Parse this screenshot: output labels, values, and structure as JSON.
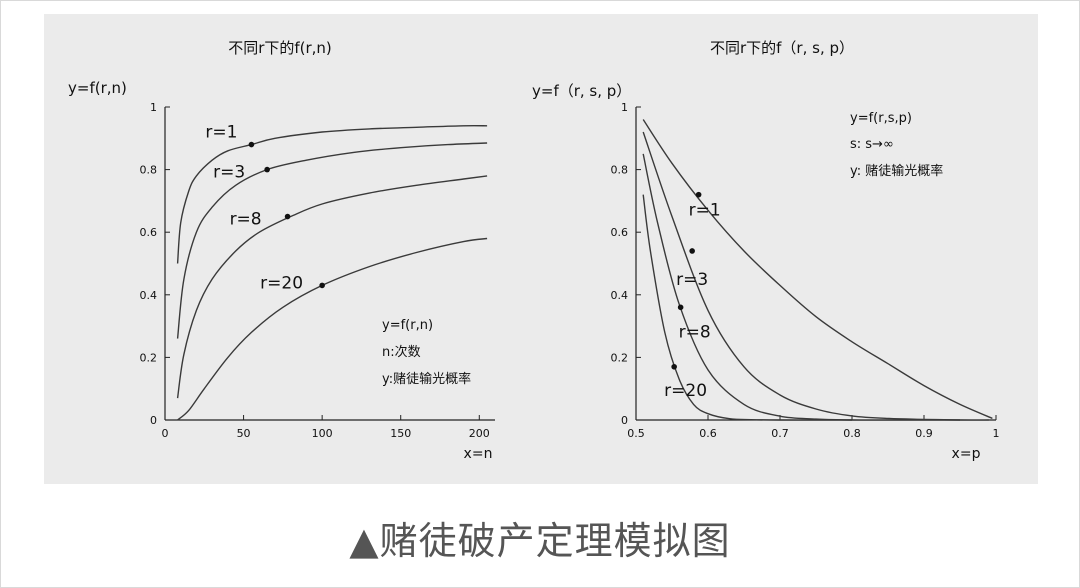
{
  "caption": "▲赌徒破产定理模拟图",
  "chart_data": [
    {
      "type": "line",
      "title": "不同r下的f(r,n)",
      "ylabel": "y=f(r,n)",
      "xlabel": "x=n",
      "xlim": [
        0,
        210
      ],
      "ylim": [
        0,
        1
      ],
      "x_ticks": [
        0,
        50,
        100,
        150,
        200
      ],
      "x_tick_labels": [
        "0",
        "50",
        "100",
        "150",
        "200"
      ],
      "y_ticks": [
        0,
        0.2,
        0.4,
        0.6,
        0.8,
        1
      ],
      "y_tick_labels": [
        "0",
        "0.2",
        "0.4",
        "0.6",
        "0.8",
        "1"
      ],
      "series": [
        {
          "name": "r=1",
          "x": [
            8,
            10,
            15,
            20,
            30,
            40,
            55,
            70,
            100,
            130,
            160,
            190,
            205
          ],
          "y": [
            0.5,
            0.63,
            0.73,
            0.78,
            0.83,
            0.86,
            0.88,
            0.9,
            0.92,
            0.93,
            0.935,
            0.94,
            0.94
          ],
          "marker": [
            55,
            0.88
          ]
        },
        {
          "name": "r=3",
          "x": [
            8,
            12,
            20,
            30,
            45,
            65,
            90,
            120,
            150,
            180,
            205
          ],
          "y": [
            0.26,
            0.45,
            0.6,
            0.68,
            0.75,
            0.8,
            0.83,
            0.855,
            0.87,
            0.88,
            0.885
          ],
          "marker": [
            65,
            0.8
          ]
        },
        {
          "name": "r=8",
          "x": [
            8,
            12,
            20,
            30,
            45,
            60,
            80,
            100,
            130,
            160,
            190,
            205
          ],
          "y": [
            0.07,
            0.21,
            0.35,
            0.45,
            0.54,
            0.6,
            0.65,
            0.69,
            0.725,
            0.75,
            0.77,
            0.78
          ],
          "marker": [
            78,
            0.65
          ]
        },
        {
          "name": "r=20",
          "x": [
            8,
            15,
            25,
            40,
            55,
            75,
            100,
            130,
            160,
            190,
            205
          ],
          "y": [
            0.0,
            0.03,
            0.1,
            0.2,
            0.28,
            0.36,
            0.43,
            0.49,
            0.535,
            0.57,
            0.58
          ],
          "marker": [
            100,
            0.43
          ]
        }
      ],
      "legend_box": [
        "y=f(r,n)",
        "n:次数",
        "y:赌徒输光概率"
      ]
    },
    {
      "type": "line",
      "title": "不同r下的f（r, s, p）",
      "ylabel": "y=f（r, s, p）",
      "xlabel": "x=p",
      "xlim": [
        0.5,
        1
      ],
      "ylim": [
        0,
        1
      ],
      "x_ticks": [
        0.5,
        0.6,
        0.7,
        0.8,
        0.9,
        1
      ],
      "x_tick_labels": [
        "0.5",
        "0.6",
        "0.7",
        "0.8",
        "0.9",
        "1"
      ],
      "y_ticks": [
        0,
        0.2,
        0.4,
        0.6,
        0.8,
        1
      ],
      "y_tick_labels": [
        "0",
        "0.2",
        "0.4",
        "0.6",
        "0.8",
        "1"
      ],
      "series": [
        {
          "name": "r=1",
          "x": [
            0.51,
            0.55,
            0.6,
            0.65,
            0.7,
            0.75,
            0.8,
            0.85,
            0.9,
            0.95,
            0.995
          ],
          "y": [
            0.96,
            0.82,
            0.67,
            0.54,
            0.43,
            0.33,
            0.25,
            0.18,
            0.11,
            0.05,
            0.005
          ],
          "marker": [
            0.587,
            0.72
          ]
        },
        {
          "name": "r=3",
          "x": [
            0.51,
            0.55,
            0.6,
            0.65,
            0.7,
            0.75,
            0.8,
            0.85,
            0.9,
            0.95,
            0.99
          ],
          "y": [
            0.92,
            0.65,
            0.35,
            0.17,
            0.08,
            0.035,
            0.013,
            0.005,
            0.002,
            0.0,
            0.0
          ],
          "marker": [
            0.578,
            0.54
          ]
        },
        {
          "name": "r=8",
          "x": [
            0.51,
            0.53,
            0.56,
            0.6,
            0.65,
            0.7,
            0.75,
            0.8,
            0.85,
            0.9,
            0.95
          ],
          "y": [
            0.85,
            0.63,
            0.37,
            0.16,
            0.05,
            0.012,
            0.003,
            0.0,
            0.0,
            0.0,
            0.0
          ],
          "marker": [
            0.562,
            0.36
          ]
        },
        {
          "name": "r=20",
          "x": [
            0.51,
            0.52,
            0.54,
            0.56,
            0.58,
            0.6,
            0.63,
            0.66,
            0.7,
            0.75,
            0.8
          ],
          "y": [
            0.72,
            0.54,
            0.28,
            0.13,
            0.05,
            0.02,
            0.004,
            0.001,
            0.0,
            0.0,
            0.0
          ],
          "marker": [
            0.553,
            0.17
          ]
        }
      ],
      "legend_box": [
        "y=f(r,s,p)",
        "s: s→∞",
        "y: 赌徒输光概率"
      ]
    }
  ]
}
